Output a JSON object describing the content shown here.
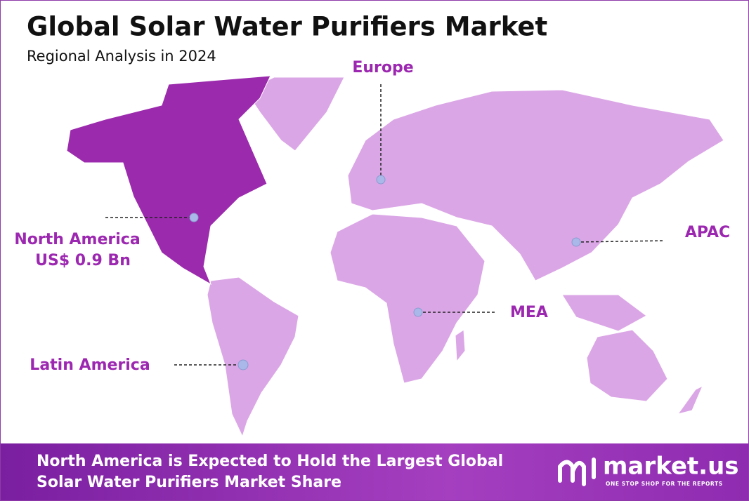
{
  "header": {
    "title": "Global Solar Water Purifiers Market",
    "subtitle": "Regional Analysis in 2024"
  },
  "regions": [
    {
      "label": "North America",
      "value": "US$ 0.9 Bn"
    },
    {
      "label": "Europe"
    },
    {
      "label": "APAC"
    },
    {
      "label": "MEA"
    },
    {
      "label": "Latin America"
    }
  ],
  "footer": {
    "lines": [
      "North America is Expected to Hold the Largest Global",
      "Solar Water Purifiers Market Share"
    ],
    "brand": "market.us",
    "tagline": "ONE STOP SHOP FOR THE REPORTS"
  }
}
